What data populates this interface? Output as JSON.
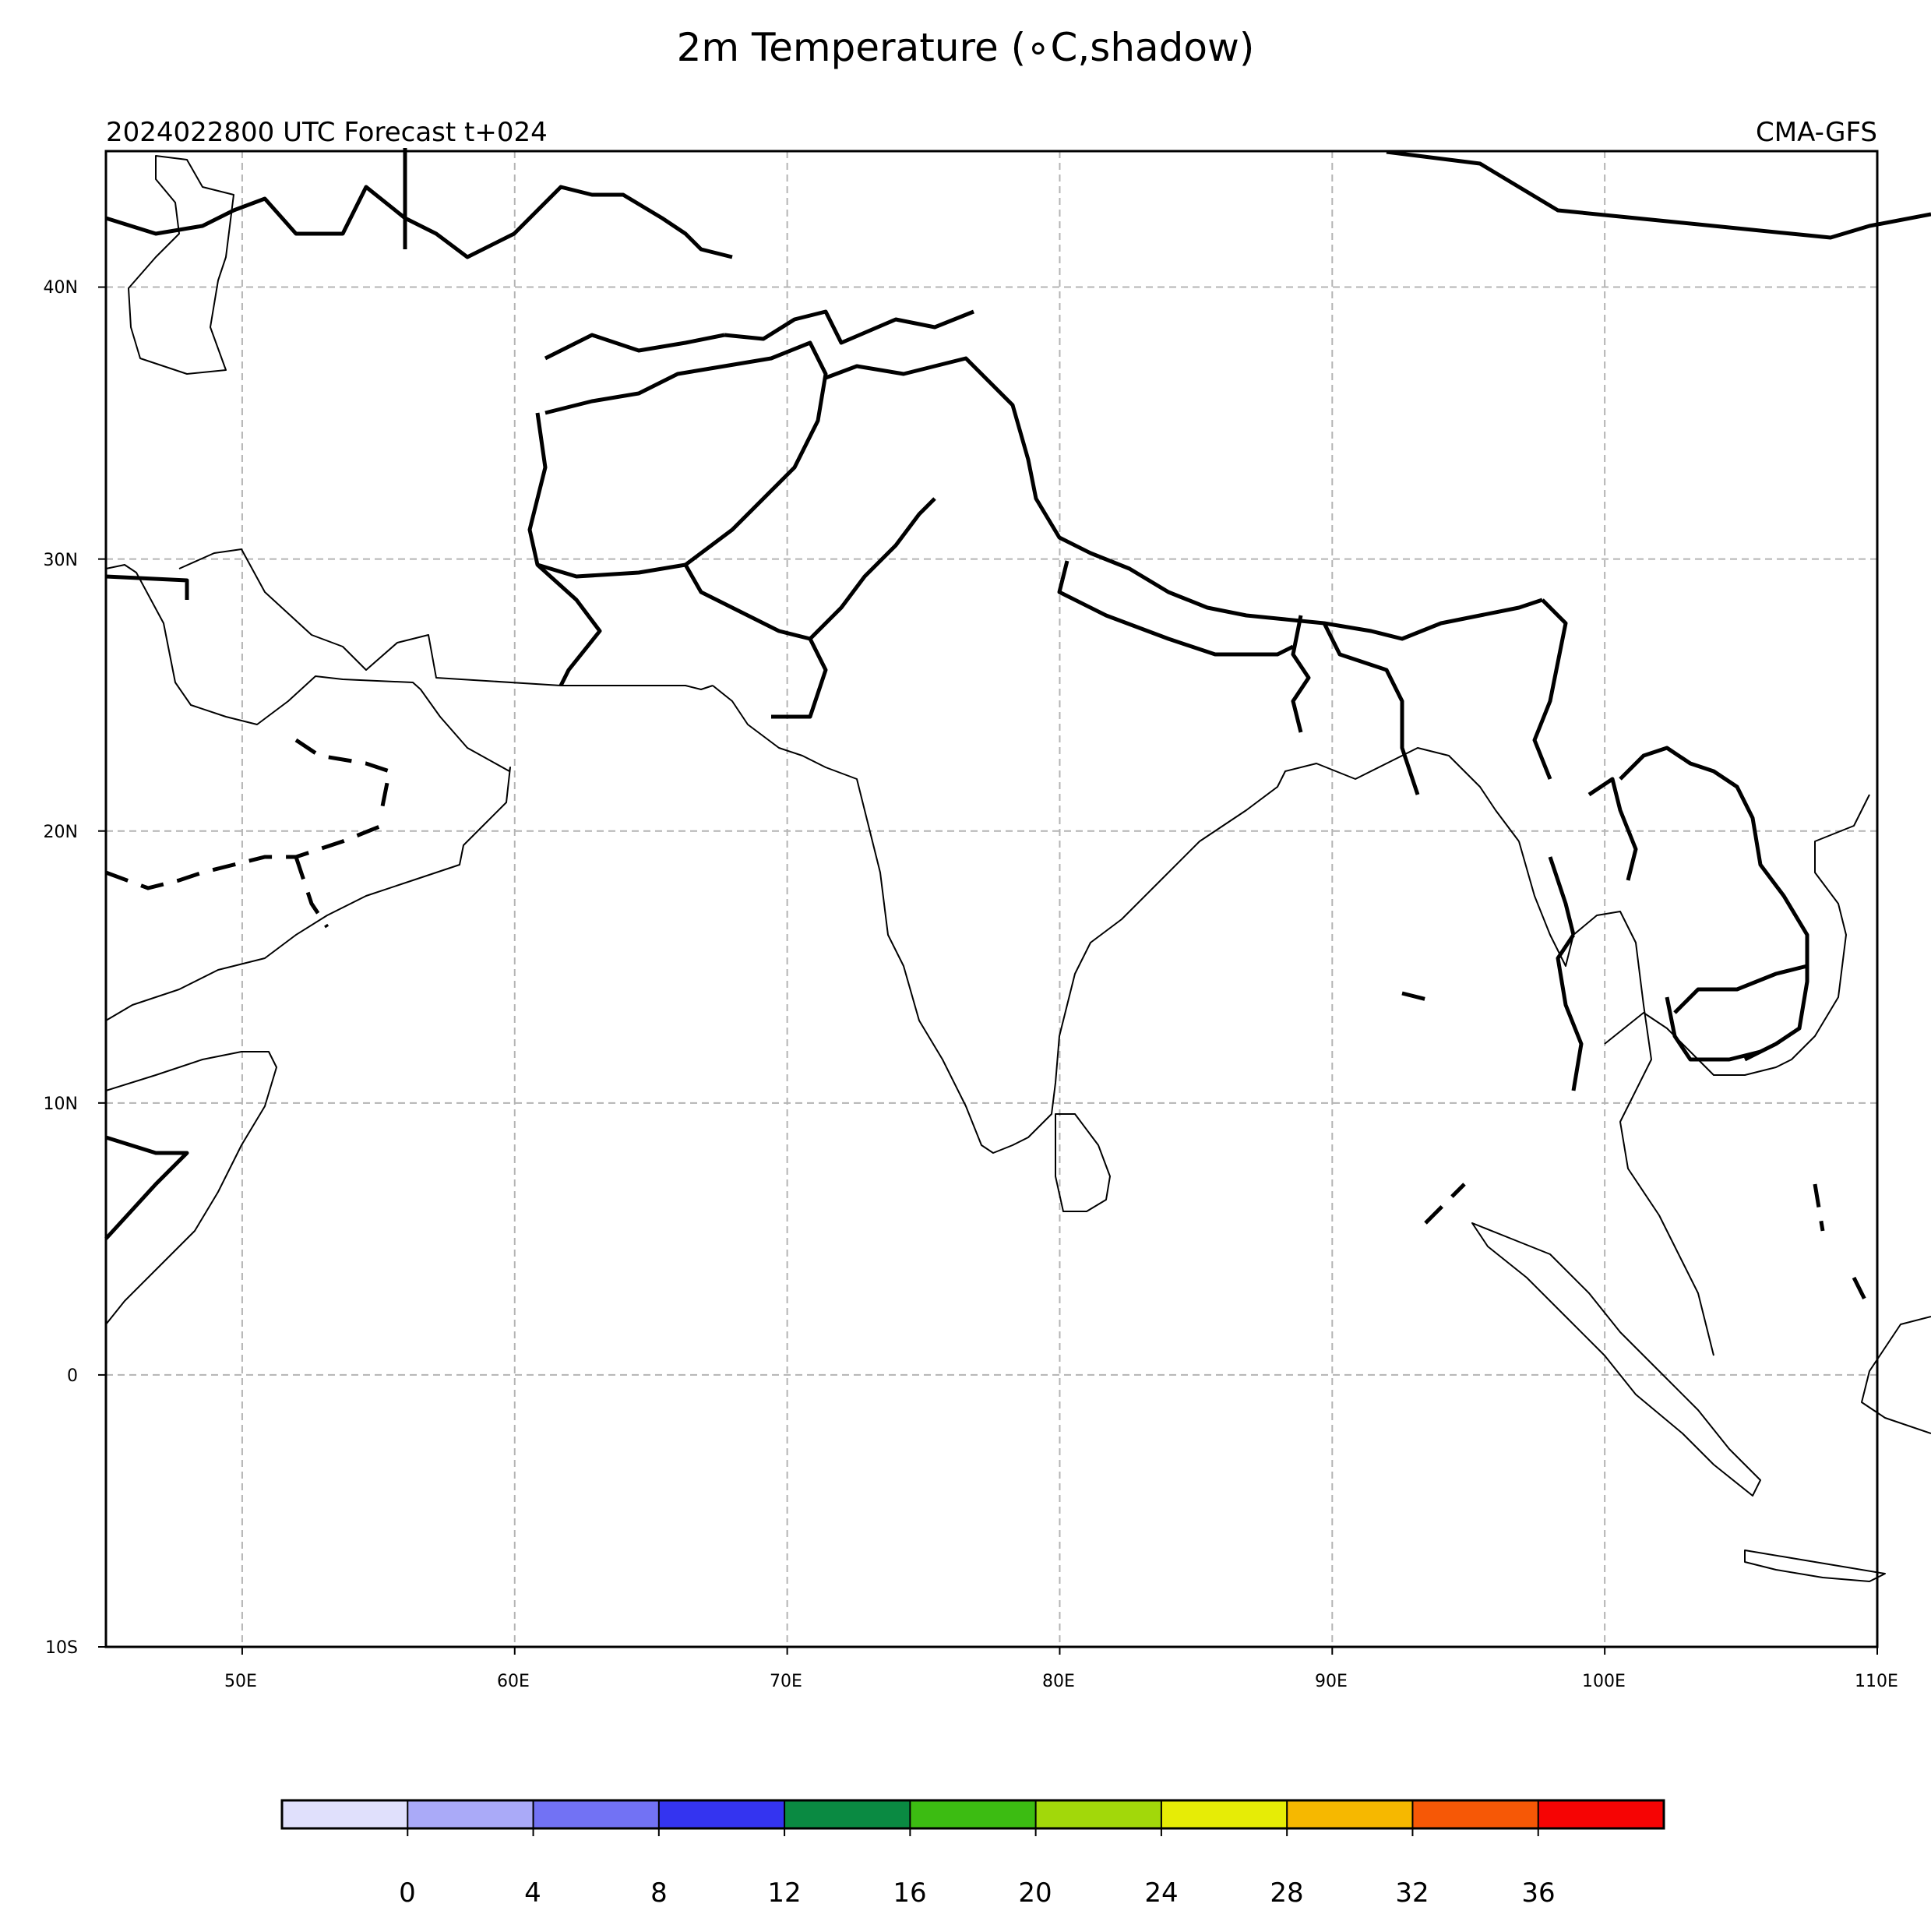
{
  "title": "2m Temperature (∘C,shadow)",
  "subtitle_left": "2024022800 UTC Forecast t+024",
  "subtitle_right": "CMA-GFS",
  "map": {
    "lon_range": [
      45,
      110
    ],
    "lat_range": [
      -10,
      45
    ],
    "grid": "dashed gray, every 10 degrees",
    "lat_labels": [
      "40N",
      "30N",
      "20N",
      "10N",
      "0",
      "10S"
    ],
    "lon_labels": [
      "50E",
      "60E",
      "70E",
      "80E",
      "90E",
      "100E",
      "110E"
    ]
  },
  "colorbar": {
    "ticks": [
      "0",
      "4",
      "8",
      "12",
      "16",
      "20",
      "24",
      "28",
      "32",
      "36"
    ],
    "colors": [
      "#e0e0fc",
      "#aaaaf8",
      "#7272f4",
      "#3434f0",
      "#0a8a42",
      "#3cbc12",
      "#a2d80a",
      "#e6ec06",
      "#f6b800",
      "#f65806",
      "#f60404"
    ]
  }
}
